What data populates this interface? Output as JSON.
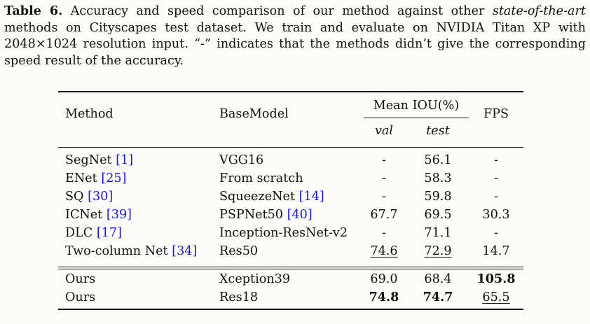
{
  "caption": {
    "label": "Table 6.",
    "part1": " Accuracy and speed comparison of our method against other ",
    "italic": "state-of-the-art",
    "part2": " methods on Cityscapes test dataset. We train and evaluate on NVIDIA Titan XP with 2048×1024 resolution input. “-” indicates that the methods didn’t give the corresponding speed result of the accuracy."
  },
  "header": {
    "method": "Method",
    "basemodel": "BaseModel",
    "miou": "Mean IOU(%)",
    "fps": "FPS",
    "val": "val",
    "test": "test"
  },
  "rows": [
    {
      "method": "SegNet ",
      "ref_open": "[",
      "ref": "1",
      "ref_close": "]",
      "base": "VGG16",
      "base_ref": "",
      "val": "-",
      "test": "56.1",
      "fps": "-"
    },
    {
      "method": "ENet ",
      "ref_open": "[",
      "ref": "25",
      "ref_close": "]",
      "base": "From scratch",
      "base_ref": "",
      "val": "-",
      "test": "58.3",
      "fps": "-"
    },
    {
      "method": "SQ ",
      "ref_open": "[",
      "ref": "30",
      "ref_close": "]",
      "base": "SqueezeNet ",
      "base_ref": "14",
      "val": "-",
      "test": "59.8",
      "fps": "-"
    },
    {
      "method": "ICNet ",
      "ref_open": "[",
      "ref": "39",
      "ref_close": "]",
      "base": "PSPNet50 ",
      "base_ref": "40",
      "val": "67.7",
      "test": "69.5",
      "fps": "30.3"
    },
    {
      "method": "DLC ",
      "ref_open": "[",
      "ref": "17",
      "ref_close": "]",
      "base": "Inception-ResNet-v2",
      "base_ref": "",
      "val": "-",
      "test": "71.1",
      "fps": "-"
    },
    {
      "method": "Two-column Net ",
      "ref_open": "[",
      "ref": "34",
      "ref_close": "]",
      "base": "Res50",
      "base_ref": "",
      "val": "74.6",
      "test": "72.9",
      "fps": "14.7"
    }
  ],
  "ours": [
    {
      "method": "Ours",
      "base": "Xception39",
      "val": "69.0",
      "test": "68.4",
      "fps": "105.8"
    },
    {
      "method": "Ours",
      "base": "Res18",
      "val": "74.8",
      "test": "74.7",
      "fps": "65.5"
    }
  ]
}
